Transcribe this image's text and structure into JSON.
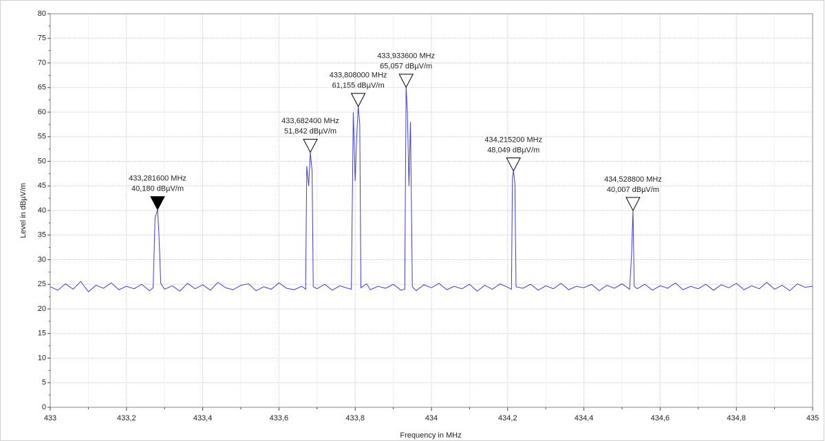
{
  "chart_data": {
    "type": "line",
    "x_label": "Frequency in MHz",
    "y_label": "Level in dBµV/m",
    "color": "#3b3bdc",
    "grid": true,
    "xlim": [
      433,
      435
    ],
    "ylim": [
      0,
      80
    ],
    "xticks": [
      433,
      {
        "value": 433.2,
        "label": "433,2"
      },
      {
        "value": 433.4,
        "label": "433,4"
      },
      {
        "value": 433.6,
        "label": "433,6"
      },
      {
        "value": 433.8,
        "label": "433,8"
      },
      434,
      {
        "value": 434.2,
        "label": "434,2"
      },
      {
        "value": 434.4,
        "label": "434,4"
      },
      {
        "value": 434.6,
        "label": "434,6"
      },
      {
        "value": 434.8,
        "label": "434,8"
      },
      435
    ],
    "yticks": [
      0,
      5,
      10,
      15,
      20,
      25,
      30,
      35,
      40,
      45,
      50,
      55,
      60,
      65,
      70,
      75,
      80
    ],
    "x": [
      433.0,
      433.02,
      433.04,
      433.06,
      433.08,
      433.1,
      433.12,
      433.14,
      433.16,
      433.18,
      433.2,
      433.22,
      433.24,
      433.26,
      433.27,
      433.275,
      433.2816,
      433.285,
      433.29,
      433.3,
      433.32,
      433.34,
      433.36,
      433.38,
      433.4,
      433.42,
      433.44,
      433.46,
      433.48,
      433.5,
      433.52,
      433.54,
      433.56,
      433.58,
      433.6,
      433.62,
      433.64,
      433.66,
      433.67,
      433.673,
      433.678,
      433.6824,
      433.687,
      433.69,
      433.7,
      433.72,
      433.74,
      433.76,
      433.78,
      433.79,
      433.795,
      433.8,
      433.804,
      433.808,
      433.812,
      433.815,
      433.83,
      433.84,
      433.86,
      433.88,
      433.9,
      433.92,
      433.93,
      433.9336,
      433.937,
      433.941,
      433.945,
      433.95,
      433.96,
      433.98,
      434.0,
      434.02,
      434.04,
      434.06,
      434.08,
      434.1,
      434.12,
      434.14,
      434.16,
      434.18,
      434.2,
      434.21,
      434.2125,
      434.2152,
      434.219,
      434.222,
      434.24,
      434.26,
      434.28,
      434.3,
      434.32,
      434.34,
      434.36,
      434.38,
      434.4,
      434.42,
      434.44,
      434.46,
      434.48,
      434.5,
      434.52,
      434.525,
      434.5288,
      434.532,
      434.54,
      434.56,
      434.58,
      434.6,
      434.62,
      434.64,
      434.66,
      434.68,
      434.7,
      434.72,
      434.74,
      434.76,
      434.78,
      434.8,
      434.82,
      434.84,
      434.86,
      434.88,
      434.9,
      434.92,
      434.94,
      434.96,
      434.98,
      435.0
    ],
    "values": [
      24.5,
      23.8,
      25.1,
      24.0,
      25.6,
      23.5,
      24.8,
      24.2,
      25.3,
      23.9,
      24.6,
      24.1,
      25.0,
      23.7,
      24.3,
      38.5,
      40.18,
      35.5,
      25.2,
      24.0,
      24.7,
      23.6,
      25.2,
      24.1,
      24.9,
      23.8,
      25.4,
      24.3,
      23.9,
      24.8,
      25.1,
      23.7,
      24.5,
      24.0,
      25.3,
      24.2,
      23.9,
      24.6,
      24.0,
      49,
      45,
      51.842,
      48,
      24.5,
      24.1,
      25.0,
      23.8,
      24.7,
      24.2,
      24.0,
      60,
      46,
      55,
      61.155,
      57.5,
      24.3,
      25.1,
      23.9,
      24.6,
      24.2,
      25.0,
      23.8,
      24.0,
      65.057,
      60,
      45,
      58,
      24.5,
      23.7,
      24.9,
      24.3,
      25.2,
      23.9,
      24.6,
      24.1,
      25.0,
      23.6,
      24.8,
      24.0,
      25.1,
      24.4,
      24.0,
      46.5,
      48.049,
      45.5,
      24.5,
      24.2,
      25.0,
      23.8,
      24.7,
      24.1,
      25.2,
      23.9,
      24.6,
      24.3,
      25.0,
      23.7,
      24.8,
      24.2,
      25.1,
      24.0,
      31,
      40.007,
      24.6,
      24.1,
      25.0,
      23.8,
      24.7,
      24.2,
      25.3,
      23.9,
      24.6,
      24.1,
      25.0,
      23.8,
      24.9,
      24.3,
      25.2,
      23.9,
      24.7,
      24.1,
      25.4,
      24.0,
      24.8,
      23.7,
      25.1,
      24.4,
      24.6
    ],
    "markers": [
      {
        "x": 433.2816,
        "y": 40.18,
        "freq_label": "433,281600 MHz",
        "level_label": "40,180 dBµV/m",
        "filled": true
      },
      {
        "x": 433.6824,
        "y": 51.842,
        "freq_label": "433,682400 MHz",
        "level_label": "51,842 dBµV/m",
        "filled": false
      },
      {
        "x": 433.808,
        "y": 61.155,
        "freq_label": "433,808000 MHz",
        "level_label": "61,155 dBµV/m",
        "filled": false
      },
      {
        "x": 433.9336,
        "y": 65.057,
        "freq_label": "433,933600 MHz",
        "level_label": "65,057 dBµV/m",
        "filled": false
      },
      {
        "x": 434.2152,
        "y": 48.049,
        "freq_label": "434,215200 MHz",
        "level_label": "48,049 dBµV/m",
        "filled": false
      },
      {
        "x": 434.5288,
        "y": 40.007,
        "freq_label": "434,528800 MHz",
        "level_label": "40,007 dBµV/m",
        "filled": false
      }
    ]
  }
}
